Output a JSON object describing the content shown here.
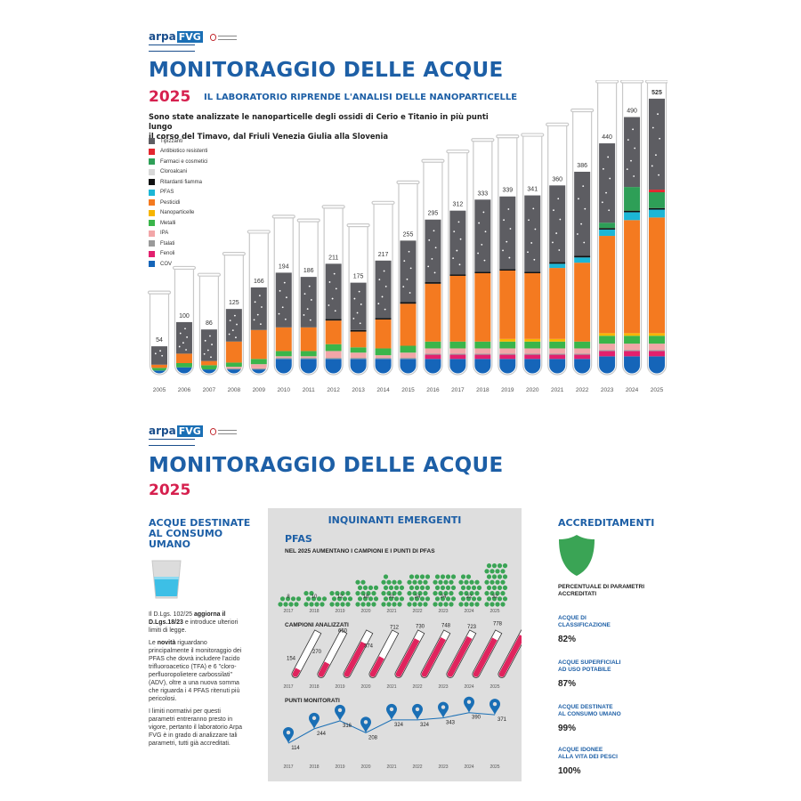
{
  "top": {
    "logo": {
      "word": "arpa",
      "box": "FVG"
    },
    "title": "MONITORAGGIO DELLE ACQUE",
    "year": "2025",
    "subtitle": "IL LABORATORIO RIPRENDE L'ANALISI DELLE NANOPARTICELLE",
    "intro_line1": "Sono state analizzate le nanoparticelle degli ossidi di Cerio e Titanio in più punti lungo",
    "intro_line2": "il corso del Timavo, dal Friuli Venezia Giulia alla Slovenia"
  },
  "chart_data": {
    "type": "bar",
    "stacked": true,
    "title": "",
    "xlabel": "",
    "ylabel": "",
    "legend_position": "top-left",
    "categories": [
      "2005",
      "2006",
      "2007",
      "2008",
      "2009",
      "2010",
      "2011",
      "2012",
      "2013",
      "2014",
      "2015",
      "2016",
      "2017",
      "2018",
      "2019",
      "2020",
      "2021",
      "2022",
      "2023",
      "2024",
      "2025"
    ],
    "totals": [
      54,
      100,
      86,
      125,
      166,
      194,
      186,
      211,
      175,
      217,
      255,
      295,
      312,
      333,
      339,
      341,
      360,
      386,
      440,
      490,
      525
    ],
    "legend": [
      {
        "name": "Tipizzanti",
        "color": "#5d5d62"
      },
      {
        "name": "Antibiotico resistenti",
        "color": "#e3262e"
      },
      {
        "name": "Farmaci e cosmetici",
        "color": "#2e9f57"
      },
      {
        "name": "Cloroalcani",
        "color": "#d8d8d8"
      },
      {
        "name": "Ritardanti fiamma",
        "color": "#111111"
      },
      {
        "name": "PFAS",
        "color": "#1cb6d6"
      },
      {
        "name": "Pesticidi",
        "color": "#f47a20"
      },
      {
        "name": "Nanoparticelle",
        "color": "#f7b500"
      },
      {
        "name": "Metalli",
        "color": "#3ab54a"
      },
      {
        "name": "IPA",
        "color": "#f2a6a8"
      },
      {
        "name": "Ftalati",
        "color": "#9a9a9a"
      },
      {
        "name": "Fenoli",
        "color": "#e2206e"
      },
      {
        "name": "COV",
        "color": "#1565b9"
      }
    ],
    "series": [
      {
        "name": "COV",
        "values": [
          8,
          14,
          10,
          10,
          10,
          30,
          30,
          30,
          30,
          30,
          30,
          30,
          30,
          30,
          30,
          30,
          30,
          30,
          35,
          35,
          35
        ]
      },
      {
        "name": "Fenoli",
        "values": [
          0,
          0,
          0,
          0,
          0,
          0,
          0,
          0,
          0,
          0,
          0,
          8,
          8,
          8,
          8,
          8,
          8,
          8,
          10,
          10,
          10
        ]
      },
      {
        "name": "Ftalati",
        "values": [
          0,
          0,
          0,
          2,
          2,
          2,
          2,
          2,
          2,
          2,
          2,
          2,
          2,
          2,
          2,
          2,
          2,
          2,
          2,
          2,
          2
        ]
      },
      {
        "name": "IPA",
        "values": [
          0,
          0,
          0,
          3,
          8,
          3,
          3,
          13,
          10,
          5,
          10,
          10,
          10,
          10,
          10,
          10,
          10,
          10,
          12,
          12,
          12
        ]
      },
      {
        "name": "Metalli",
        "values": [
          5,
          8,
          8,
          8,
          10,
          10,
          10,
          13,
          10,
          13,
          13,
          13,
          13,
          13,
          13,
          13,
          13,
          13,
          15,
          15,
          15
        ]
      },
      {
        "name": "Nanoparticelle",
        "values": [
          0,
          0,
          0,
          0,
          0,
          0,
          0,
          0,
          0,
          0,
          0,
          0,
          0,
          0,
          5,
          5,
          5,
          0,
          5,
          5,
          5
        ]
      },
      {
        "name": "Pesticidi",
        "values": [
          6,
          18,
          8,
          40,
          55,
          45,
          45,
          45,
          30,
          55,
          80,
          110,
          125,
          130,
          130,
          125,
          135,
          150,
          185,
          215,
          220
        ]
      },
      {
        "name": "PFAS",
        "values": [
          0,
          0,
          0,
          0,
          0,
          0,
          0,
          0,
          0,
          0,
          0,
          0,
          0,
          0,
          0,
          0,
          8,
          10,
          12,
          15,
          15
        ]
      },
      {
        "name": "Ritardanti fiamma",
        "values": [
          0,
          0,
          0,
          0,
          0,
          0,
          0,
          3,
          3,
          3,
          3,
          3,
          3,
          3,
          3,
          3,
          3,
          3,
          3,
          3,
          3
        ]
      },
      {
        "name": "Cloroalcani",
        "values": [
          0,
          0,
          0,
          0,
          0,
          0,
          0,
          0,
          0,
          0,
          0,
          0,
          0,
          0,
          0,
          0,
          0,
          0,
          0,
          0,
          0
        ]
      },
      {
        "name": "Farmaci e cosmetici",
        "values": [
          0,
          0,
          0,
          0,
          0,
          0,
          0,
          0,
          0,
          0,
          0,
          0,
          0,
          0,
          0,
          0,
          0,
          0,
          10,
          45,
          30
        ]
      },
      {
        "name": "Antibiotico resistenti",
        "values": [
          0,
          0,
          0,
          0,
          0,
          0,
          0,
          0,
          0,
          0,
          0,
          0,
          0,
          0,
          0,
          0,
          0,
          0,
          0,
          0,
          5
        ]
      },
      {
        "name": "Tipizzanti",
        "values": [
          35,
          60,
          60,
          62,
          81,
          104,
          96,
          105,
          90,
          109,
          117,
          119,
          121,
          137,
          138,
          145,
          146,
          160,
          151,
          133,
          173
        ]
      }
    ],
    "ylim": [
      0,
      540
    ]
  },
  "bottom": {
    "logo": {
      "word": "arpa",
      "box": "FVG"
    },
    "title": "MONITORAGGIO DELLE ACQUE",
    "year": "2025",
    "acque": {
      "head_line1": "ACQUE DESTINATE",
      "head_line2": "AL CONSUMO",
      "head_line3": "UMANO",
      "p1_a": "Il D.Lgs. 102/25 ",
      "p1_b": "aggiorna il D.Lgs.18/23",
      "p1_c": " e introduce ulteriori limiti di legge.",
      "p2_a": "Le ",
      "p2_b": "novità",
      "p2_c": " riguardano principalmente il monitoraggio dei PFAS che dovrà includere l'acido trifluoroacetico (TFA) e 6 \"cloro-perfluoropolietere carbossilati\" (ADV), oltre a una nuova somma che riguarda i 4 PFAS ritenuti più pericolosi.",
      "p3": "I limiti normativi per questi parametri entreranno presto in vigore, pertanto il laboratorio Arpa FVG è in grado di analizzare tali parametri, tutti già accreditati."
    },
    "inquinanti": {
      "title": "INQUINANTI EMERGENTI",
      "pfas_label": "PFAS",
      "pfas_sub": "NEL 2025 AUMENTANO I CAMPIONI E I PUNTI DI PFAS",
      "years": [
        "2017",
        "2018",
        "2019",
        "2020",
        "2021",
        "2022",
        "2023",
        "2024",
        "2025"
      ],
      "pfas_counts": [
        "8",
        "10",
        "12",
        "18",
        "21",
        "24",
        "24",
        "22",
        "32"
      ],
      "campioni_label": "CAMPIONI ANALIZZATI",
      "campioni_values": [
        "154",
        "270",
        "650",
        "374",
        "712",
        "730",
        "748",
        "723",
        "778"
      ],
      "campioni_chart_data": {
        "type": "bar",
        "categories": [
          "2017",
          "2018",
          "2019",
          "2020",
          "2021",
          "2022",
          "2023",
          "2024",
          "2025"
        ],
        "values": [
          154,
          270,
          650,
          374,
          712,
          730,
          748,
          723,
          778
        ],
        "ylim": [
          0,
          800
        ]
      },
      "punti_label": "PUNTI MONITORATI",
      "punti_values": [
        "114",
        "244",
        "316",
        "208",
        "324",
        "324",
        "343",
        "390",
        "371"
      ],
      "punti_chart_data": {
        "type": "line",
        "categories": [
          "2017",
          "2018",
          "2019",
          "2020",
          "2021",
          "2022",
          "2023",
          "2024",
          "2025"
        ],
        "values": [
          114,
          244,
          316,
          208,
          324,
          324,
          343,
          390,
          371
        ],
        "ylim": [
          50,
          420
        ]
      },
      "colors": {
        "green": "#3aa455",
        "red": "#e0245e",
        "blue": "#1a6fb5"
      }
    },
    "accreditamenti": {
      "title": "ACCREDITAMENTI",
      "intro": "PERCENTUALE DI PARAMETRI ACCREDITATI",
      "items": [
        {
          "label_line1": "ACQUE DI",
          "label_line2": "CLASSIFICAZIONE",
          "value": "82%"
        },
        {
          "label_line1": "ACQUE SUPERFICIALI",
          "label_line2": "AD USO POTABILE",
          "value": "87%"
        },
        {
          "label_line1": "ACQUE DESTINATE",
          "label_line2": "AL CONSUMO UMANO",
          "value": "99%"
        },
        {
          "label_line1": "ACQUE IDONEE",
          "label_line2": "ALLA VITA DEI PESCI",
          "value": "100%"
        }
      ]
    }
  }
}
